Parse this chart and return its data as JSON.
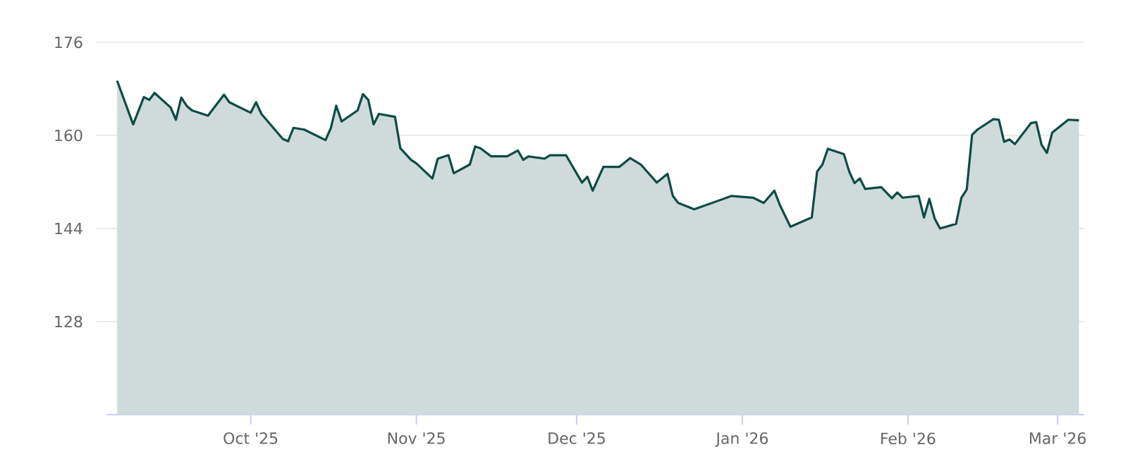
{
  "chart_data": {
    "type": "area",
    "color": "#0e4b46",
    "grid": "y",
    "x": [
      "2025-09-06",
      "2025-09-09",
      "2025-09-11",
      "2025-09-12",
      "2025-09-13",
      "2025-09-16",
      "2025-09-17",
      "2025-09-18",
      "2025-09-19",
      "2025-09-20",
      "2025-09-23",
      "2025-09-26",
      "2025-09-27",
      "2025-10-01",
      "2025-10-02",
      "2025-10-03",
      "2025-10-07",
      "2025-10-08",
      "2025-10-09",
      "2025-10-11",
      "2025-10-15",
      "2025-10-16",
      "2025-10-17",
      "2025-10-18",
      "2025-10-21",
      "2025-10-22",
      "2025-10-23",
      "2025-10-24",
      "2025-10-25",
      "2025-10-28",
      "2025-10-29",
      "2025-10-31",
      "2025-11-01",
      "2025-11-04",
      "2025-11-05",
      "2025-11-07",
      "2025-11-08",
      "2025-11-11",
      "2025-11-12",
      "2025-11-13",
      "2025-11-15",
      "2025-11-18",
      "2025-11-20",
      "2025-11-21",
      "2025-11-22",
      "2025-11-25",
      "2025-11-26",
      "2025-11-29",
      "2025-12-02",
      "2025-12-03",
      "2025-12-04",
      "2025-12-06",
      "2025-12-09",
      "2025-12-11",
      "2025-12-13",
      "2025-12-16",
      "2025-12-18",
      "2025-12-19",
      "2025-12-20",
      "2025-12-23",
      "2025-12-30",
      "2026-01-03",
      "2026-01-05",
      "2026-01-07",
      "2026-01-08",
      "2026-01-10",
      "2026-01-14",
      "2026-01-15",
      "2026-01-16",
      "2026-01-17",
      "2026-01-20",
      "2026-01-21",
      "2026-01-22",
      "2026-01-23",
      "2026-01-24",
      "2026-01-27",
      "2026-01-29",
      "2026-01-30",
      "2026-01-31",
      "2026-02-03",
      "2026-02-04",
      "2026-02-05",
      "2026-02-06",
      "2026-02-07",
      "2026-02-10",
      "2026-02-11",
      "2026-02-12",
      "2026-02-13",
      "2026-02-14",
      "2026-02-17",
      "2026-02-18",
      "2026-02-19",
      "2026-02-20",
      "2026-02-21",
      "2026-02-24",
      "2026-02-25",
      "2026-02-26",
      "2026-02-27",
      "2026-02-28",
      "2026-03-03",
      "2026-03-05"
    ],
    "values": [
      169.4,
      161.9,
      166.6,
      166.1,
      167.3,
      164.8,
      162.7,
      166.5,
      165.1,
      164.3,
      163.4,
      167.0,
      165.7,
      163.9,
      165.7,
      163.7,
      159.4,
      159.0,
      161.3,
      161.0,
      159.2,
      161.3,
      165.1,
      162.4,
      164.3,
      167.1,
      166.1,
      161.9,
      163.7,
      163.2,
      157.8,
      155.8,
      155.2,
      152.6,
      156.0,
      156.6,
      153.5,
      155.0,
      158.1,
      157.8,
      156.4,
      156.4,
      157.4,
      155.8,
      156.4,
      156.0,
      156.6,
      156.6,
      151.9,
      152.9,
      150.5,
      154.6,
      154.6,
      156.1,
      155.0,
      151.9,
      153.4,
      149.6,
      148.4,
      147.3,
      149.6,
      149.3,
      148.4,
      150.5,
      148.1,
      144.3,
      145.9,
      153.8,
      155.0,
      157.7,
      156.8,
      153.8,
      151.8,
      152.6,
      150.8,
      151.1,
      149.2,
      150.2,
      149.3,
      149.6,
      145.9,
      149.1,
      145.7,
      144.0,
      144.8,
      149.3,
      150.7,
      160.1,
      161.0,
      162.8,
      162.7,
      158.9,
      159.3,
      158.5,
      162.1,
      162.3,
      158.4,
      157.0,
      160.5,
      162.7,
      162.6
    ],
    "xlim": [
      "2025-09-04",
      "2026-03-06"
    ],
    "ylim": [
      112,
      176
    ],
    "xticks": [
      {
        "value": "2025-10-01",
        "label": "Oct '25"
      },
      {
        "value": "2025-11-01",
        "label": "Nov '25"
      },
      {
        "value": "2025-12-01",
        "label": "Dec '25"
      },
      {
        "value": "2026-01-01",
        "label": "Jan '26"
      },
      {
        "value": "2026-02-01",
        "label": "Feb '26"
      },
      {
        "value": "2026-03-01",
        "label": "Mar '26"
      }
    ],
    "yticks": [
      128,
      144,
      160,
      176
    ]
  }
}
